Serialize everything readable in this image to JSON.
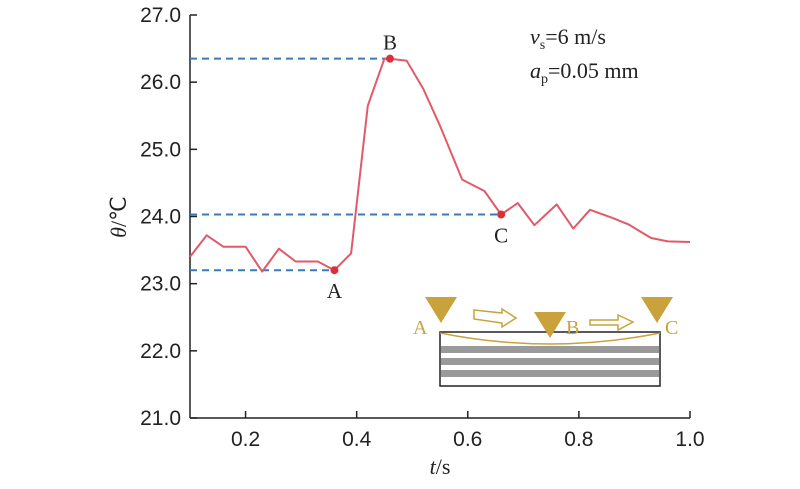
{
  "chart_data": {
    "type": "line",
    "xlabel_var": "t",
    "xlabel_unit": "/s",
    "ylabel_var": "θ",
    "ylabel_unit": "/℃",
    "xlim": [
      0.1,
      1.0
    ],
    "ylim": [
      21.0,
      27.0
    ],
    "xticks": [
      0.2,
      0.4,
      0.6,
      0.8,
      1.0
    ],
    "xtick_labels": [
      "0.2",
      "0.4",
      "0.6",
      "0.8",
      "1.0"
    ],
    "yticks": [
      21.0,
      22.0,
      23.0,
      24.0,
      25.0,
      26.0,
      27.0
    ],
    "ytick_labels": [
      "21.0",
      "22.0",
      "23.0",
      "24.0",
      "25.0",
      "26.0",
      "27.0"
    ],
    "grid": false,
    "series": [
      {
        "color": "#e05a6a",
        "x": [
          0.1,
          0.13,
          0.16,
          0.2,
          0.23,
          0.26,
          0.29,
          0.33,
          0.36,
          0.39,
          0.42,
          0.45,
          0.46,
          0.49,
          0.52,
          0.55,
          0.59,
          0.63,
          0.66,
          0.69,
          0.72,
          0.76,
          0.79,
          0.82,
          0.86,
          0.89,
          0.93,
          0.96,
          1.0
        ],
        "y": [
          23.4,
          23.72,
          23.55,
          23.55,
          23.18,
          23.52,
          23.33,
          23.33,
          23.2,
          23.45,
          25.65,
          26.35,
          26.35,
          26.32,
          25.9,
          25.35,
          24.55,
          24.38,
          24.03,
          24.2,
          23.87,
          24.18,
          23.82,
          24.1,
          23.98,
          23.88,
          23.68,
          23.63,
          23.62
        ]
      }
    ],
    "marked_points": [
      {
        "label": "A",
        "x": 0.36,
        "y": 23.2,
        "label_pos": "below"
      },
      {
        "label": "B",
        "x": 0.46,
        "y": 26.35,
        "label_pos": "above"
      },
      {
        "label": "C",
        "x": 0.66,
        "y": 24.03,
        "label_pos": "below"
      }
    ],
    "reference_lines": [
      {
        "y": 26.35,
        "x_end": 0.46
      },
      {
        "y": 24.03,
        "x_end": 0.66
      },
      {
        "y": 23.2,
        "x_end": 0.36
      }
    ],
    "reference_line_color": "#3a7ab8",
    "annotation": {
      "line1_var": "v",
      "line1_sub": "s",
      "line1_rest": "=6 m/s",
      "line2_var": "a",
      "line2_sub": "p",
      "line2_rest": "=0.05 mm"
    },
    "inset": {
      "labels": [
        "A",
        "B",
        "C"
      ],
      "accent_color": "#c9a23c",
      "stripe_color": "#9a9a9a"
    }
  }
}
